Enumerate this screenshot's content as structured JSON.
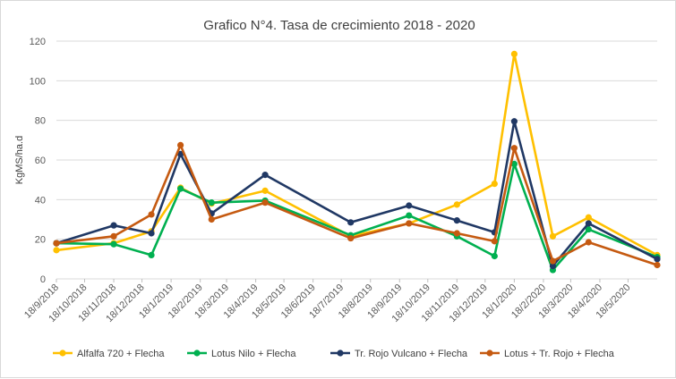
{
  "chart_data": {
    "type": "line",
    "title": "Grafico N°4. Tasa de crecimiento 2018 - 2020",
    "ylabel": "KgMS/ha.d",
    "xlabel": "",
    "ylim": [
      0,
      120
    ],
    "yticks": [
      0,
      20,
      40,
      60,
      80,
      100,
      120
    ],
    "x_ticks": [
      "18/9/2018",
      "18/10/2018",
      "18/11/2018",
      "18/12/2018",
      "18/1/2019",
      "18/2/2019",
      "18/3/2019",
      "18/4/2019",
      "18/5/2019",
      "18/6/2019",
      "18/7/2019",
      "18/8/2019",
      "18/9/2019",
      "18/10/2019",
      "18/11/2019",
      "18/12/2019",
      "18/1/2020",
      "18/2/2020",
      "18/3/2020",
      "18/4/2020",
      "18/5/2020"
    ],
    "x_range": [
      "2018-09-18",
      "2020-06-18"
    ],
    "grid": "horizontal",
    "legend_position": "bottom",
    "series": [
      {
        "name": "Alfalfa 720 + Flecha",
        "color": "#FFC000",
        "points": [
          [
            "2018-09-18",
            14.5
          ],
          [
            "2018-11-18",
            18
          ],
          [
            "2018-12-28",
            24
          ],
          [
            "2019-01-28",
            46
          ],
          [
            "2019-03-02",
            38
          ],
          [
            "2019-04-28",
            44.5
          ],
          [
            "2019-07-28",
            21.5
          ],
          [
            "2019-09-28",
            28
          ],
          [
            "2019-11-18",
            37.5
          ],
          [
            "2019-12-28",
            48
          ],
          [
            "2020-01-18",
            113.5
          ],
          [
            "2020-02-28",
            21.5
          ],
          [
            "2020-04-06",
            31
          ],
          [
            "2020-06-18",
            12
          ]
        ]
      },
      {
        "name": "Lotus Nilo + Flecha",
        "color": "#00B050",
        "points": [
          [
            "2018-09-18",
            18
          ],
          [
            "2018-11-18",
            17.5
          ],
          [
            "2018-12-28",
            12
          ],
          [
            "2019-01-28",
            45.5
          ],
          [
            "2019-03-02",
            38.5
          ],
          [
            "2019-04-28",
            39.5
          ],
          [
            "2019-07-28",
            22
          ],
          [
            "2019-09-28",
            32
          ],
          [
            "2019-11-18",
            21.5
          ],
          [
            "2019-12-28",
            11.5
          ],
          [
            "2020-01-18",
            58
          ],
          [
            "2020-02-28",
            4.5
          ],
          [
            "2020-04-06",
            25
          ],
          [
            "2020-06-18",
            11
          ]
        ]
      },
      {
        "name": "Tr. Rojo Vulcano + Flecha",
        "color": "#203864",
        "points": [
          [
            "2018-09-18",
            18
          ],
          [
            "2018-11-18",
            27
          ],
          [
            "2018-12-28",
            23
          ],
          [
            "2019-01-28",
            63
          ],
          [
            "2019-03-02",
            33
          ],
          [
            "2019-04-28",
            52.5
          ],
          [
            "2019-07-28",
            28.5
          ],
          [
            "2019-09-28",
            37
          ],
          [
            "2019-11-18",
            29.5
          ],
          [
            "2019-12-28",
            23.5
          ],
          [
            "2020-01-18",
            79.5
          ],
          [
            "2020-02-28",
            6.5
          ],
          [
            "2020-04-06",
            28
          ],
          [
            "2020-06-18",
            10
          ]
        ]
      },
      {
        "name": "Lotus + Tr. Rojo + Flecha",
        "color": "#C55A11",
        "points": [
          [
            "2018-09-18",
            18
          ],
          [
            "2018-11-18",
            21.5
          ],
          [
            "2018-12-28",
            32.5
          ],
          [
            "2019-01-28",
            67.5
          ],
          [
            "2019-03-02",
            30
          ],
          [
            "2019-04-28",
            38.5
          ],
          [
            "2019-07-28",
            20.5
          ],
          [
            "2019-09-28",
            28
          ],
          [
            "2019-11-18",
            23
          ],
          [
            "2019-12-28",
            19
          ],
          [
            "2020-01-18",
            66
          ],
          [
            "2020-02-28",
            9
          ],
          [
            "2020-04-06",
            18.5
          ],
          [
            "2020-06-18",
            7
          ]
        ]
      }
    ]
  }
}
